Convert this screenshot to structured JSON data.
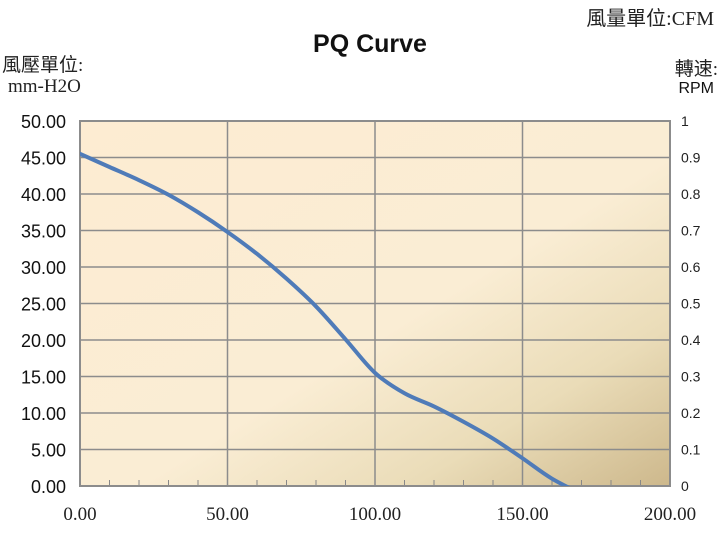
{
  "chart_data": {
    "type": "line",
    "title": "PQ Curve",
    "flow_unit_label": "風量單位:CFM",
    "ylabel_line1": "風壓單位:",
    "ylabel_line2": "mm-H2O",
    "y2label_line1": "轉速:",
    "y2label_line2": "RPM",
    "xlim": [
      0,
      200
    ],
    "ylim": [
      0,
      50
    ],
    "y2lim": [
      0,
      1
    ],
    "x_ticks": [
      "0.00",
      "50.00",
      "100.00",
      "150.00",
      "200.00"
    ],
    "y_ticks": [
      "0.00",
      "5.00",
      "10.00",
      "15.00",
      "20.00",
      "25.00",
      "30.00",
      "35.00",
      "40.00",
      "45.00",
      "50.00"
    ],
    "y2_ticks": [
      "0",
      "0.1",
      "0.2",
      "0.3",
      "0.4",
      "0.5",
      "0.6",
      "0.7",
      "0.8",
      "0.9",
      "1"
    ],
    "grid": true,
    "series": [
      {
        "color": "#4f7bb8",
        "x": [
          0,
          10,
          20,
          30,
          40,
          50,
          60,
          70,
          80,
          90,
          100,
          110,
          120,
          130,
          140,
          150,
          160,
          172
        ],
        "y": [
          45.5,
          43.7,
          41.9,
          39.9,
          37.5,
          34.8,
          31.8,
          28.4,
          24.6,
          20.1,
          15.5,
          12.7,
          10.9,
          8.8,
          6.5,
          3.8,
          1.0,
          -1.5
        ]
      }
    ]
  }
}
